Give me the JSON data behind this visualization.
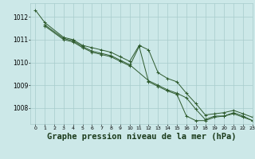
{
  "title": "Graphe pression niveau de la mer (hPa)",
  "background_color": "#cce8e8",
  "grid_color": "#a8cccc",
  "line_color": "#2d5a2d",
  "xlim": [
    -0.5,
    23
  ],
  "ylim": [
    1007.3,
    1012.6
  ],
  "xticks": [
    0,
    1,
    2,
    3,
    4,
    5,
    6,
    7,
    8,
    9,
    10,
    11,
    12,
    13,
    14,
    15,
    16,
    17,
    18,
    19,
    20,
    21,
    22,
    23
  ],
  "yticks": [
    1008,
    1009,
    1010,
    1011,
    1012
  ],
  "series": [
    {
      "x": [
        0,
        1,
        3,
        4,
        5,
        6,
        7,
        8,
        9,
        10,
        11,
        12,
        13,
        14,
        15,
        16,
        17,
        18,
        19,
        20,
        21,
        22,
        23
      ],
      "y": [
        1012.3,
        1011.75,
        1011.1,
        1011.0,
        1010.75,
        1010.65,
        1010.55,
        1010.45,
        1010.25,
        1010.05,
        1010.75,
        1010.55,
        1009.55,
        1009.3,
        1009.15,
        1008.65,
        1008.2,
        1007.7,
        1007.75,
        1007.8,
        1007.9,
        1007.75,
        1007.6
      ]
    },
    {
      "x": [
        1,
        3,
        4,
        5,
        6,
        7,
        8,
        9,
        10,
        12,
        13,
        14,
        15,
        16,
        17,
        18,
        19,
        20,
        21,
        22,
        23
      ],
      "y": [
        1011.65,
        1011.05,
        1010.95,
        1010.7,
        1010.5,
        1010.4,
        1010.3,
        1010.1,
        1009.9,
        1009.2,
        1009.0,
        1008.8,
        1008.65,
        1008.45,
        1007.95,
        1007.5,
        1007.65,
        1007.65,
        1007.8,
        1007.65,
        1007.45
      ]
    },
    {
      "x": [
        1,
        3,
        4,
        5,
        6,
        7,
        8,
        9,
        10,
        11,
        12,
        13,
        14,
        15,
        16,
        17,
        18,
        19,
        20,
        21,
        22,
        23
      ],
      "y": [
        1011.6,
        1011.0,
        1010.9,
        1010.65,
        1010.45,
        1010.35,
        1010.25,
        1010.05,
        1009.85,
        1010.7,
        1009.15,
        1008.95,
        1008.75,
        1008.6,
        1007.65,
        1007.45,
        1007.45,
        1007.6,
        1007.65,
        1007.75,
        1007.6,
        1007.45
      ]
    }
  ],
  "title_fontsize": 7.5,
  "tick_fontsize": 5.5,
  "label_color": "#1a3a1a"
}
